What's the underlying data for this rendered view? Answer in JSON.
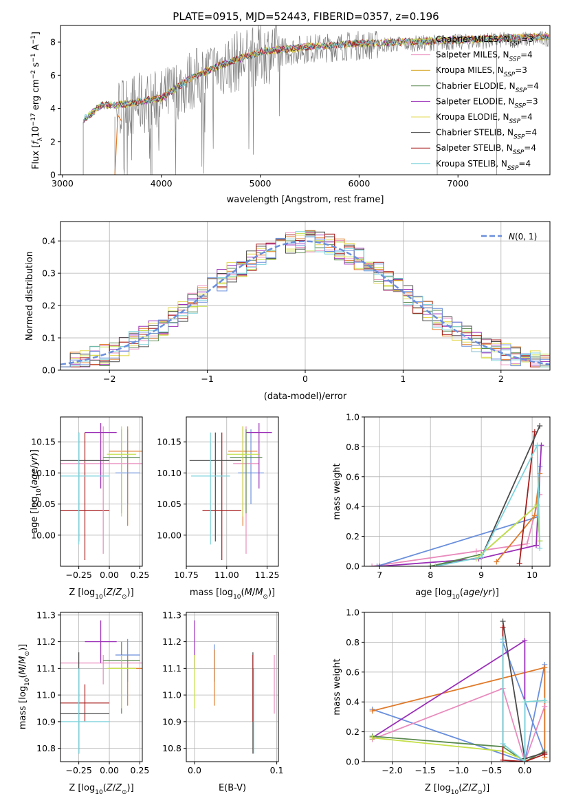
{
  "figure": {
    "title": "PLATE=0915, MJD=52443, FIBERID=0357, z=0.196"
  },
  "colors": {
    "grey": "#808080",
    "blue": "#6a8fdc",
    "orange": "#e07b2b",
    "green": "#5a8a50",
    "purple": "#9b30b8",
    "lime": "#c5e04a",
    "darkgrey": "#4a4a4a",
    "red": "#a61b1b",
    "cyan": "#7fd3dc",
    "pink": "#e98bbd",
    "gold": "#d4a017",
    "yellow": "#e3d84f"
  },
  "chart_data": [
    {
      "type": "line",
      "name": "spectrum",
      "title": "PLATE=0915, MJD=52443, FIBERID=0357, z=0.196",
      "xlabel": "wavelength [Angstrom, rest frame]",
      "ylabel": "Flux [f_λ 10^-17 erg cm^-2 s^-1 A^-1]",
      "xlim": [
        2980,
        7930
      ],
      "ylim": [
        0,
        9
      ],
      "xticks": [
        3000,
        4000,
        5000,
        6000,
        7000
      ],
      "yticks": [
        0,
        2,
        4,
        6,
        8
      ],
      "legend_position": "top-right",
      "grid": false,
      "continuum_points": {
        "x": [
          3210,
          3400,
          3600,
          3800,
          4000,
          4300,
          4600,
          5000,
          5500,
          6000,
          6500,
          7000,
          7400,
          7900
        ],
        "y": [
          3.2,
          4.1,
          4.1,
          4.3,
          4.5,
          5.7,
          6.5,
          7.3,
          7.6,
          7.8,
          7.9,
          8.0,
          8.1,
          8.2
        ]
      },
      "series": [
        {
          "name": "Chabrier MILES, N_SSP=3",
          "color": "#c5e04a"
        },
        {
          "name": "Salpeter MILES, N_SSP=4",
          "color": "#e98bbd"
        },
        {
          "name": "Kroupa MILES, N_SSP=3",
          "color": "#d4a017"
        },
        {
          "name": "Chabrier ELODIE, N_SSP=4",
          "color": "#5a8a50"
        },
        {
          "name": "Salpeter ELODIE, N_SSP=3",
          "color": "#9b30b8"
        },
        {
          "name": "Kroupa ELODIE, N_SSP=4",
          "color": "#e3d84f"
        },
        {
          "name": "Chabrier STELIB, N_SSP=4",
          "color": "#4a4a4a"
        },
        {
          "name": "Salpeter STELIB, N_SSP=4",
          "color": "#a61b1b"
        },
        {
          "name": "Kroupa STELIB, N_SSP=4",
          "color": "#7fd3dc"
        }
      ]
    },
    {
      "type": "line",
      "name": "residuals",
      "xlabel": "(data-model)/error",
      "ylabel": "Normed distribution",
      "xlim": [
        -2.5,
        2.5
      ],
      "ylim": [
        0,
        0.46
      ],
      "xticks": [
        -2,
        -1,
        0,
        1,
        2
      ],
      "yticks": [
        0.0,
        0.1,
        0.2,
        0.3,
        0.4
      ],
      "grid": true,
      "legend": "N(0,1)",
      "legend_position": "top-right"
    },
    {
      "type": "scatter",
      "name": "age-vs-Z",
      "xlabel": "Z [log10(Z/Z_sun)]",
      "ylabel": "age [log10(age/yr)]",
      "xlim": [
        -0.4,
        0.27
      ],
      "ylim": [
        9.95,
        10.19
      ],
      "xticks": [
        -0.25,
        0.0,
        0.25
      ],
      "yticks": [
        10.0,
        10.05,
        10.1,
        10.15
      ],
      "grid": true,
      "points": [
        {
          "color": "#a61b1b",
          "x": -0.2,
          "xerr": 0.2,
          "y": 10.04,
          "yerr": [
            0.08,
            0.125
          ]
        },
        {
          "color": "#6a8fdc",
          "x": 0.15,
          "xerr": 0.1,
          "y": 10.1,
          "yerr": [
            0.05,
            0.07
          ]
        },
        {
          "color": "#e98bbd",
          "x": -0.05,
          "xerr": 0.4,
          "y": 10.115,
          "yerr": [
            0.145,
            0.06
          ]
        },
        {
          "color": "#9b30b8",
          "x": -0.07,
          "xerr": 0.13,
          "y": 10.165,
          "yerr": [
            0.09,
            0.015
          ]
        },
        {
          "color": "#e07b2b",
          "x": 0.15,
          "xerr": 0.15,
          "y": 10.135,
          "yerr": [
            0.12,
            0.04
          ]
        },
        {
          "color": "#5a8a50",
          "x": 0.1,
          "xerr": 0.15,
          "y": 10.125,
          "yerr": [
            0.09,
            0.045
          ]
        },
        {
          "color": "#c5e04a",
          "x": 0.1,
          "xerr": 0.12,
          "y": 10.13,
          "yerr": [
            0.1,
            0.045
          ]
        },
        {
          "color": "#4a4a4a",
          "x": -0.25,
          "xerr": 0.25,
          "y": 10.12,
          "yerr": [
            0.13,
            0.045
          ]
        },
        {
          "color": "#7fd3dc",
          "x": -0.25,
          "xerr": 0.25,
          "y": 10.095,
          "yerr": [
            0.11,
            0.07
          ]
        }
      ]
    },
    {
      "type": "scatter",
      "name": "age-vs-mass",
      "xlabel": "mass [log10(M/M_sun)]",
      "xlim": [
        10.75,
        11.32
      ],
      "ylim": [
        9.95,
        10.19
      ],
      "xticks": [
        10.75,
        11.0,
        11.25
      ],
      "yticks": [
        10.0,
        10.05,
        10.1,
        10.15
      ],
      "grid": true,
      "points": [
        {
          "color": "#a61b1b",
          "x": 10.97,
          "xerr": 0.12,
          "y": 10.04,
          "yerr": [
            0.08,
            0.125
          ]
        },
        {
          "color": "#6a8fdc",
          "x": 11.15,
          "xerr": 0.08,
          "y": 10.1,
          "yerr": [
            0.05,
            0.07
          ]
        },
        {
          "color": "#e98bbd",
          "x": 11.12,
          "xerr": 0.08,
          "y": 10.115,
          "yerr": [
            0.145,
            0.06
          ]
        },
        {
          "color": "#9b30b8",
          "x": 11.2,
          "xerr": 0.08,
          "y": 10.165,
          "yerr": [
            0.09,
            0.015
          ]
        },
        {
          "color": "#e07b2b",
          "x": 11.1,
          "xerr": 0.09,
          "y": 10.135,
          "yerr": [
            0.12,
            0.04
          ]
        },
        {
          "color": "#5a8a50",
          "x": 11.12,
          "xerr": 0.1,
          "y": 10.125,
          "yerr": [
            0.09,
            0.045
          ]
        },
        {
          "color": "#c5e04a",
          "x": 11.1,
          "xerr": 0.1,
          "y": 10.13,
          "yerr": [
            0.1,
            0.045
          ]
        },
        {
          "color": "#4a4a4a",
          "x": 10.93,
          "xerr": 0.16,
          "y": 10.12,
          "yerr": [
            0.13,
            0.045
          ]
        },
        {
          "color": "#7fd3dc",
          "x": 10.9,
          "xerr": 0.12,
          "y": 10.095,
          "yerr": [
            0.11,
            0.07
          ]
        }
      ]
    },
    {
      "type": "line",
      "name": "mass-weight-vs-age",
      "xlabel": "age [log10(age/yr)]",
      "ylabel": "mass weight",
      "xlim": [
        6.7,
        10.35
      ],
      "ylim": [
        0,
        1
      ],
      "xticks": [
        7,
        8,
        9,
        10
      ],
      "yticks": [
        0.0,
        0.2,
        0.4,
        0.6,
        0.8,
        1.0
      ],
      "grid": true,
      "series": [
        {
          "color": "#e98bbd",
          "points": [
            [
              6.85,
              0.0
            ],
            [
              8.9,
              0.1
            ],
            [
              9.9,
              0.15
            ],
            [
              10.15,
              0.48
            ]
          ]
        },
        {
          "color": "#6a8fdc",
          "points": [
            [
              6.95,
              0.0
            ],
            [
              10.1,
              0.33
            ],
            [
              10.15,
              0.67
            ]
          ]
        },
        {
          "color": "#9b30b8",
          "points": [
            [
              7.0,
              0.0
            ],
            [
              8.95,
              0.05
            ],
            [
              10.08,
              0.14
            ],
            [
              10.18,
              0.81
            ]
          ]
        },
        {
          "color": "#e07b2b",
          "points": [
            [
              9.3,
              0.03
            ],
            [
              10.05,
              0.34
            ],
            [
              10.15,
              0.62
            ]
          ]
        },
        {
          "color": "#a61b1b",
          "points": [
            [
              9.75,
              0.02
            ],
            [
              10.05,
              0.9
            ]
          ]
        },
        {
          "color": "#4a4a4a",
          "points": [
            [
              8.0,
              0.0
            ],
            [
              9.0,
              0.06
            ],
            [
              10.15,
              0.94
            ]
          ]
        },
        {
          "color": "#5a8a50",
          "points": [
            [
              8.0,
              0.0
            ],
            [
              9.0,
              0.08
            ],
            [
              10.1,
              0.41
            ],
            [
              10.15,
              0.17
            ]
          ]
        },
        {
          "color": "#c5e04a",
          "points": [
            [
              8.9,
              0.05
            ],
            [
              10.1,
              0.41
            ],
            [
              10.15,
              0.17
            ]
          ]
        },
        {
          "color": "#7fd3dc",
          "points": [
            [
              8.1,
              0.0
            ],
            [
              9.0,
              0.06
            ],
            [
              10.1,
              0.81
            ],
            [
              10.15,
              0.12
            ]
          ]
        }
      ]
    },
    {
      "type": "scatter",
      "name": "mass-vs-Z",
      "xlabel": "Z [log10(Z/Z_sun)]",
      "ylabel": "mass [log10(M/M_sun)]",
      "xlim": [
        -0.4,
        0.27
      ],
      "ylim": [
        10.75,
        11.31
      ],
      "xticks": [
        -0.25,
        0.0,
        0.25
      ],
      "yticks": [
        10.8,
        10.9,
        11.0,
        11.1,
        11.2,
        11.3
      ],
      "grid": true,
      "points": [
        {
          "color": "#a61b1b",
          "x": -0.2,
          "xerr": 0.2,
          "y": 10.97,
          "yerr": [
            0.07,
            0.07
          ]
        },
        {
          "color": "#6a8fdc",
          "x": 0.15,
          "xerr": 0.1,
          "y": 11.15,
          "yerr": [
            0.1,
            0.06
          ]
        },
        {
          "color": "#e98bbd",
          "x": -0.05,
          "xerr": 0.4,
          "y": 11.12,
          "yerr": [
            0.08,
            0.03
          ]
        },
        {
          "color": "#9b30b8",
          "x": -0.07,
          "xerr": 0.13,
          "y": 11.2,
          "yerr": [
            0.08,
            0.08
          ]
        },
        {
          "color": "#e07b2b",
          "x": 0.15,
          "xerr": 0.15,
          "y": 11.1,
          "yerr": [
            0.14,
            0.05
          ]
        },
        {
          "color": "#5a8a50",
          "x": 0.1,
          "xerr": 0.15,
          "y": 11.13,
          "yerr": [
            0.2,
            0.07
          ]
        },
        {
          "color": "#c5e04a",
          "x": 0.1,
          "xerr": 0.12,
          "y": 11.1,
          "yerr": [
            0.15,
            0.05
          ]
        },
        {
          "color": "#4a4a4a",
          "x": -0.25,
          "xerr": 0.25,
          "y": 10.93,
          "yerr": [
            0.15,
            0.23
          ]
        },
        {
          "color": "#7fd3dc",
          "x": -0.25,
          "xerr": 0.25,
          "y": 10.9,
          "yerr": [
            0.12,
            0.2
          ]
        }
      ]
    },
    {
      "type": "scatter",
      "name": "mass-vs-EBV",
      "xlabel": "E(B-V)",
      "xlim": [
        -0.01,
        0.102
      ],
      "ylim": [
        10.75,
        11.31
      ],
      "xticks": [
        0.0,
        0.1
      ],
      "yticks": [
        10.8,
        10.9,
        11.0,
        11.1,
        11.2,
        11.3
      ],
      "grid": true,
      "points": [
        {
          "color": "#9b30b8",
          "x": 0.0,
          "y": 11.2,
          "yerr": [
            0.1,
            0.08
          ]
        },
        {
          "color": "#c5e04a",
          "x": 0.0,
          "y": 11.1,
          "yerr": [
            0.15,
            0.05
          ]
        },
        {
          "color": "#6a8fdc",
          "x": 0.024,
          "y": 11.15,
          "yerr": [
            0.1,
            0.04
          ]
        },
        {
          "color": "#e07b2b",
          "x": 0.024,
          "y": 11.07,
          "yerr": [
            0.11,
            0.1
          ]
        },
        {
          "color": "#4a4a4a",
          "x": 0.071,
          "y": 10.93,
          "yerr": [
            0.15,
            0.23
          ]
        },
        {
          "color": "#a61b1b",
          "x": 0.071,
          "y": 10.97,
          "yerr": [
            0.07,
            0.18
          ]
        },
        {
          "color": "#7fd3dc",
          "x": 0.072,
          "y": 10.9,
          "yerr": [
            0.12,
            0.2
          ]
        },
        {
          "color": "#e98bbd",
          "x": 0.097,
          "y": 11.05,
          "yerr": [
            0.12,
            0.1
          ]
        }
      ]
    },
    {
      "type": "line",
      "name": "mass-weight-vs-Z",
      "xlabel": "Z [log10(Z/Z_sun)]",
      "ylabel": "mass weight",
      "xlim": [
        -2.42,
        0.38
      ],
      "ylim": [
        0,
        1
      ],
      "xticks": [
        -2.0,
        -1.5,
        -1.0,
        -0.5,
        0.0
      ],
      "yticks": [
        0.0,
        0.2,
        0.4,
        0.6,
        0.8,
        1.0
      ],
      "grid": true,
      "series": [
        {
          "color": "#6a8fdc",
          "points": [
            [
              -2.3,
              0.35
            ],
            [
              0.0,
              0.0
            ],
            [
              0.3,
              0.65
            ],
            [
              0.3,
              0.05
            ],
            [
              -0.33,
              0.8
            ]
          ]
        },
        {
          "color": "#e07b2b",
          "points": [
            [
              -2.3,
              0.34
            ],
            [
              0.3,
              0.63
            ],
            [
              0.3,
              0.03
            ]
          ]
        },
        {
          "color": "#e98bbd",
          "points": [
            [
              -2.3,
              0.15
            ],
            [
              -0.33,
              0.49
            ],
            [
              0.0,
              0.0
            ],
            [
              0.3,
              0.37
            ]
          ]
        },
        {
          "color": "#9b30b8",
          "points": [
            [
              -2.3,
              0.16
            ],
            [
              0.0,
              0.81
            ],
            [
              0.0,
              0.0
            ]
          ]
        },
        {
          "color": "#5a8a50",
          "points": [
            [
              -2.3,
              0.17
            ],
            [
              -0.33,
              0.1
            ],
            [
              0.0,
              0.0
            ],
            [
              0.3,
              0.07
            ]
          ]
        },
        {
          "color": "#c5e04a",
          "points": [
            [
              -2.3,
              0.16
            ],
            [
              -0.33,
              0.07
            ],
            [
              0.0,
              0.01
            ],
            [
              0.0,
              0.4
            ],
            [
              0.3,
              0.41
            ]
          ]
        },
        {
          "color": "#4a4a4a",
          "points": [
            [
              -0.33,
              0.94
            ],
            [
              0.0,
              0.02
            ],
            [
              0.3,
              0.06
            ]
          ]
        },
        {
          "color": "#a61b1b",
          "points": [
            [
              -0.33,
              0.9
            ],
            [
              -0.33,
              0.01
            ],
            [
              0.0,
              0.0
            ],
            [
              0.3,
              0.05
            ]
          ]
        },
        {
          "color": "#7fd3dc",
          "points": [
            [
              -0.33,
              0.82
            ],
            [
              -0.33,
              0.12
            ],
            [
              0.0,
              0.0
            ],
            [
              0.0,
              0.4
            ],
            [
              0.3,
              0.41
            ]
          ]
        }
      ]
    }
  ]
}
